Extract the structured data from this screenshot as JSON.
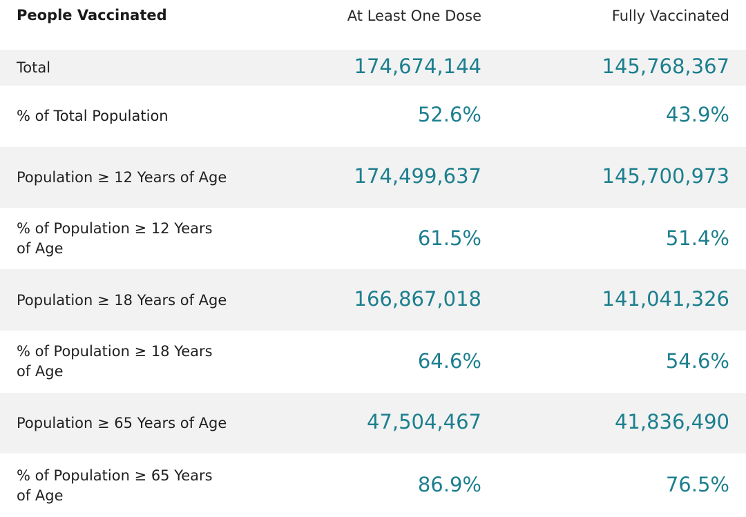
{
  "header": {
    "label": "People Vaccinated",
    "dose": "At Least One Dose",
    "full": "Fully Vaccinated"
  },
  "rows": [
    {
      "label": "Total",
      "dose": "174,674,144",
      "full": "145,768,367"
    },
    {
      "label": "% of Total Population",
      "dose": "52.6%",
      "full": "43.9%"
    },
    {
      "label": "Population ≥ 12 Years of Age",
      "dose": "174,499,637",
      "full": "145,700,973"
    },
    {
      "label": "% of Population ≥ 12 Years of Age",
      "dose": "61.5%",
      "full": "51.4%"
    },
    {
      "label": "Population ≥ 18 Years of Age",
      "dose": "166,867,018",
      "full": "141,041,326"
    },
    {
      "label": "% of Population ≥ 18 Years of Age",
      "dose": "64.6%",
      "full": "54.6%"
    },
    {
      "label": "Population ≥ 65 Years of Age",
      "dose": "47,504,467",
      "full": "41,836,490"
    },
    {
      "label": "% of Population ≥ 65 Years of Age",
      "dose": "86.9%",
      "full": "76.5%"
    }
  ]
}
